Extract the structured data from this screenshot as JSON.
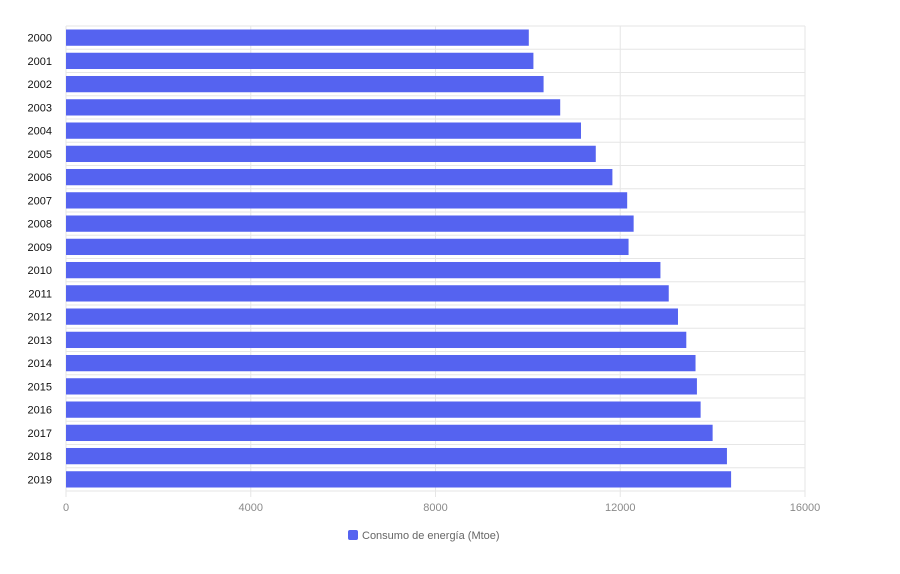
{
  "chart_data": {
    "type": "bar",
    "orientation": "horizontal",
    "categories": [
      "2000",
      "2001",
      "2002",
      "2003",
      "2004",
      "2005",
      "2006",
      "2007",
      "2008",
      "2009",
      "2010",
      "2011",
      "2012",
      "2013",
      "2014",
      "2015",
      "2016",
      "2017",
      "2018",
      "2019"
    ],
    "series": [
      {
        "name": "Consumo de energía (Mtoe)",
        "color": "#5563F0",
        "values": [
          10020,
          10120,
          10340,
          10700,
          11150,
          11470,
          11830,
          12150,
          12290,
          12180,
          12870,
          13050,
          13250,
          13430,
          13630,
          13660,
          13740,
          14000,
          14310,
          14400
        ]
      }
    ],
    "xlim": [
      0,
      16000
    ],
    "xticks": [
      "0",
      "4000",
      "8000",
      "12000",
      "16000"
    ],
    "grid": true,
    "legend_position": "bottom"
  }
}
